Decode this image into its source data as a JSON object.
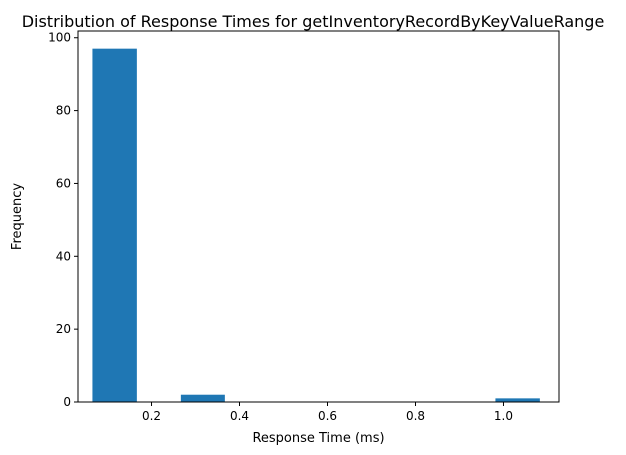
{
  "chart_data": {
    "type": "bar",
    "title": "Distribution of Response Times for getInventoryRecordByKeyValueRange",
    "xlabel": "Response Time (ms)",
    "ylabel": "Frequency",
    "xlim": [
      0.0329,
      1.1262
    ],
    "ylim": [
      0,
      101.85
    ],
    "xticks": [
      0.2,
      0.4,
      0.6,
      0.8,
      1.0
    ],
    "xtick_labels": [
      "0.2",
      "0.4",
      "0.6",
      "0.8",
      "1.0"
    ],
    "yticks": [
      0,
      20,
      40,
      60,
      80,
      100
    ],
    "ytick_labels": [
      "0",
      "20",
      "40",
      "60",
      "80",
      "100"
    ],
    "bins": [
      {
        "x0": 0.0657,
        "x1": 0.1667,
        "value": 97
      },
      {
        "x0": 0.2667,
        "x1": 0.3667,
        "value": 2
      },
      {
        "x0": 0.9817,
        "x1": 1.0827,
        "value": 1
      }
    ],
    "bar_color": "#1f77b4",
    "grid": false
  }
}
